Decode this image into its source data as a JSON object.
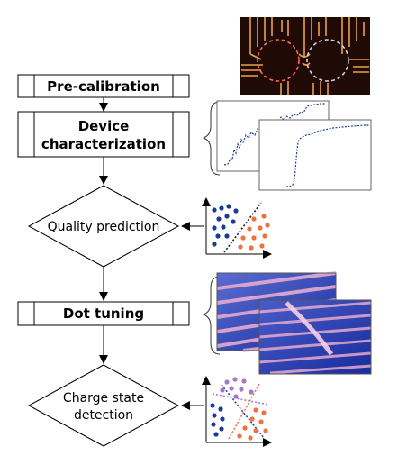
{
  "flowchart": {
    "steps": [
      {
        "id": "pre_calibration",
        "kind": "process",
        "lines": [
          "Pre-calibration"
        ]
      },
      {
        "id": "device_characterization",
        "kind": "process",
        "lines": [
          "Device",
          "characterization"
        ]
      },
      {
        "id": "quality_prediction",
        "kind": "decision",
        "lines": [
          "Quality prediction"
        ]
      },
      {
        "id": "dot_tuning",
        "kind": "process",
        "lines": [
          "Dot tuning"
        ]
      },
      {
        "id": "charge_state_detection",
        "kind": "decision",
        "lines": [
          "Charge state",
          "detection"
        ]
      }
    ]
  },
  "illustrations": {
    "device_micrograph": {
      "colors": {
        "background": "#200a06",
        "gate": "#e8a04a",
        "ring_left": "#ff6a4a",
        "ring_right": "#d8d0e8"
      }
    },
    "characterization_traces": {
      "colors": {
        "trace": "#1f3f9a",
        "frame": "#666666"
      }
    },
    "quality_classifier": {
      "colors": {
        "class_a": "#1a3a9a",
        "class_b": "#f07040",
        "boundary": "#222222"
      }
    },
    "charge_stability_maps": {
      "colors": {
        "map_dark": "#1a2fa0",
        "map_light": "#f0b0d0"
      }
    },
    "charge_state_classifier": {
      "colors": {
        "class_a": "#1a3a9a",
        "class_b": "#f07040",
        "class_c": "#a07ac8",
        "boundary_1": "#2a3a9a",
        "boundary_2": "#f07040",
        "boundary_3": "#a07ac8"
      }
    }
  }
}
